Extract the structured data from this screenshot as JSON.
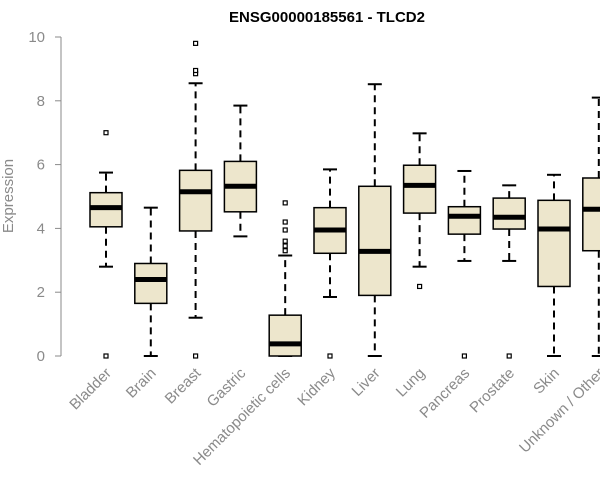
{
  "chart_data": {
    "type": "boxplot",
    "title": "ENSG00000185561 - TLCD2",
    "xlabel": "",
    "ylabel": "Expression",
    "ylim": [
      0,
      10
    ],
    "yticks": [
      0,
      2,
      4,
      6,
      8,
      10
    ],
    "box_fill": "#ede6cc",
    "stroke_color": "#000000",
    "axis_color": "#8a8a8a",
    "boxes": [
      {
        "category": "Bladder",
        "whisker_low": 2.8,
        "q1": 4.05,
        "median": 4.65,
        "q3": 5.12,
        "whisker_high": 5.75,
        "outliers": [
          0.0,
          7.0
        ]
      },
      {
        "category": "Brain",
        "whisker_low": 0.0,
        "q1": 1.65,
        "median": 2.4,
        "q3": 2.9,
        "whisker_high": 4.65,
        "outliers": []
      },
      {
        "category": "Breast",
        "whisker_low": 1.2,
        "q1": 3.92,
        "median": 5.15,
        "q3": 5.82,
        "whisker_high": 8.55,
        "outliers": [
          0.0,
          8.85,
          8.95,
          9.8
        ]
      },
      {
        "category": "Gastric",
        "whisker_low": 3.75,
        "q1": 4.52,
        "median": 5.32,
        "q3": 6.1,
        "whisker_high": 7.85,
        "outliers": []
      },
      {
        "category": "Hematopoietic cells",
        "whisker_low": 0.0,
        "q1": 0.0,
        "median": 0.38,
        "q3": 1.28,
        "whisker_high": 3.15,
        "outliers": [
          3.3,
          3.45,
          3.6,
          3.95,
          4.2,
          4.8
        ]
      },
      {
        "category": "Kidney",
        "whisker_low": 1.85,
        "q1": 3.22,
        "median": 3.95,
        "q3": 4.65,
        "whisker_high": 5.85,
        "outliers": [
          0.0
        ]
      },
      {
        "category": "Liver",
        "whisker_low": 0.0,
        "q1": 1.9,
        "median": 3.28,
        "q3": 5.32,
        "whisker_high": 8.52,
        "outliers": []
      },
      {
        "category": "Lung",
        "whisker_low": 2.8,
        "q1": 4.48,
        "median": 5.35,
        "q3": 5.98,
        "whisker_high": 6.98,
        "outliers": [
          2.18
        ]
      },
      {
        "category": "Pancreas",
        "whisker_low": 2.98,
        "q1": 3.82,
        "median": 4.38,
        "q3": 4.68,
        "whisker_high": 5.8,
        "outliers": [
          0.0
        ]
      },
      {
        "category": "Prostate",
        "whisker_low": 2.98,
        "q1": 3.98,
        "median": 4.35,
        "q3": 4.95,
        "whisker_high": 5.35,
        "outliers": [
          0.0
        ]
      },
      {
        "category": "Skin",
        "whisker_low": 0.0,
        "q1": 2.18,
        "median": 3.98,
        "q3": 4.88,
        "whisker_high": 5.68,
        "outliers": []
      },
      {
        "category": "Unknown / Other",
        "whisker_low": 0.0,
        "q1": 3.3,
        "median": 4.6,
        "q3": 5.58,
        "whisker_high": 8.1,
        "outliers": []
      }
    ]
  }
}
